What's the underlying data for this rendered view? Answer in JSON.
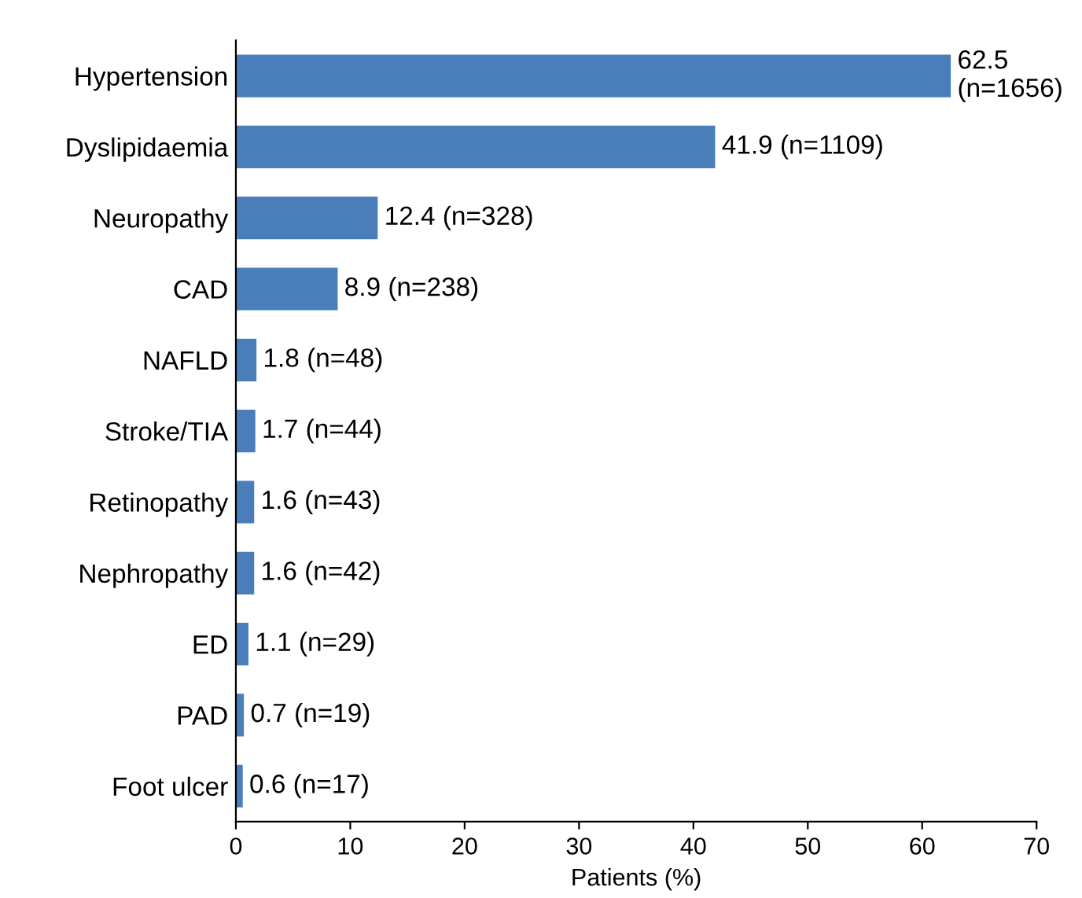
{
  "chart_data": {
    "type": "bar",
    "orientation": "horizontal",
    "xlabel": "Patients (%)",
    "categories": [
      "Hypertension",
      "Dyslipidaemia",
      "Neuropathy",
      "CAD",
      "NAFLD",
      "Stroke/TIA",
      "Retinopathy",
      "Nephropathy",
      "ED",
      "PAD",
      "Foot ulcer"
    ],
    "values": [
      62.5,
      41.9,
      12.4,
      8.9,
      1.8,
      1.7,
      1.6,
      1.6,
      1.1,
      0.7,
      0.6
    ],
    "value_labels": [
      "62.5\n(n=1656)",
      "41.9 (n=1109)",
      "12.4 (n=328)",
      "8.9 (n=238)",
      "1.8 (n=48)",
      "1.7 (n=44)",
      "1.6 (n=43)",
      "1.6 (n=42)",
      "1.1 (n=29)",
      "0.7 (n=19)",
      "0.6 (n=17)"
    ],
    "color": "#4a7ebb",
    "xlim": [
      0,
      70
    ],
    "xticks": [
      0,
      10,
      20,
      30,
      40,
      50,
      60,
      70
    ],
    "grid": false,
    "legend": false
  }
}
